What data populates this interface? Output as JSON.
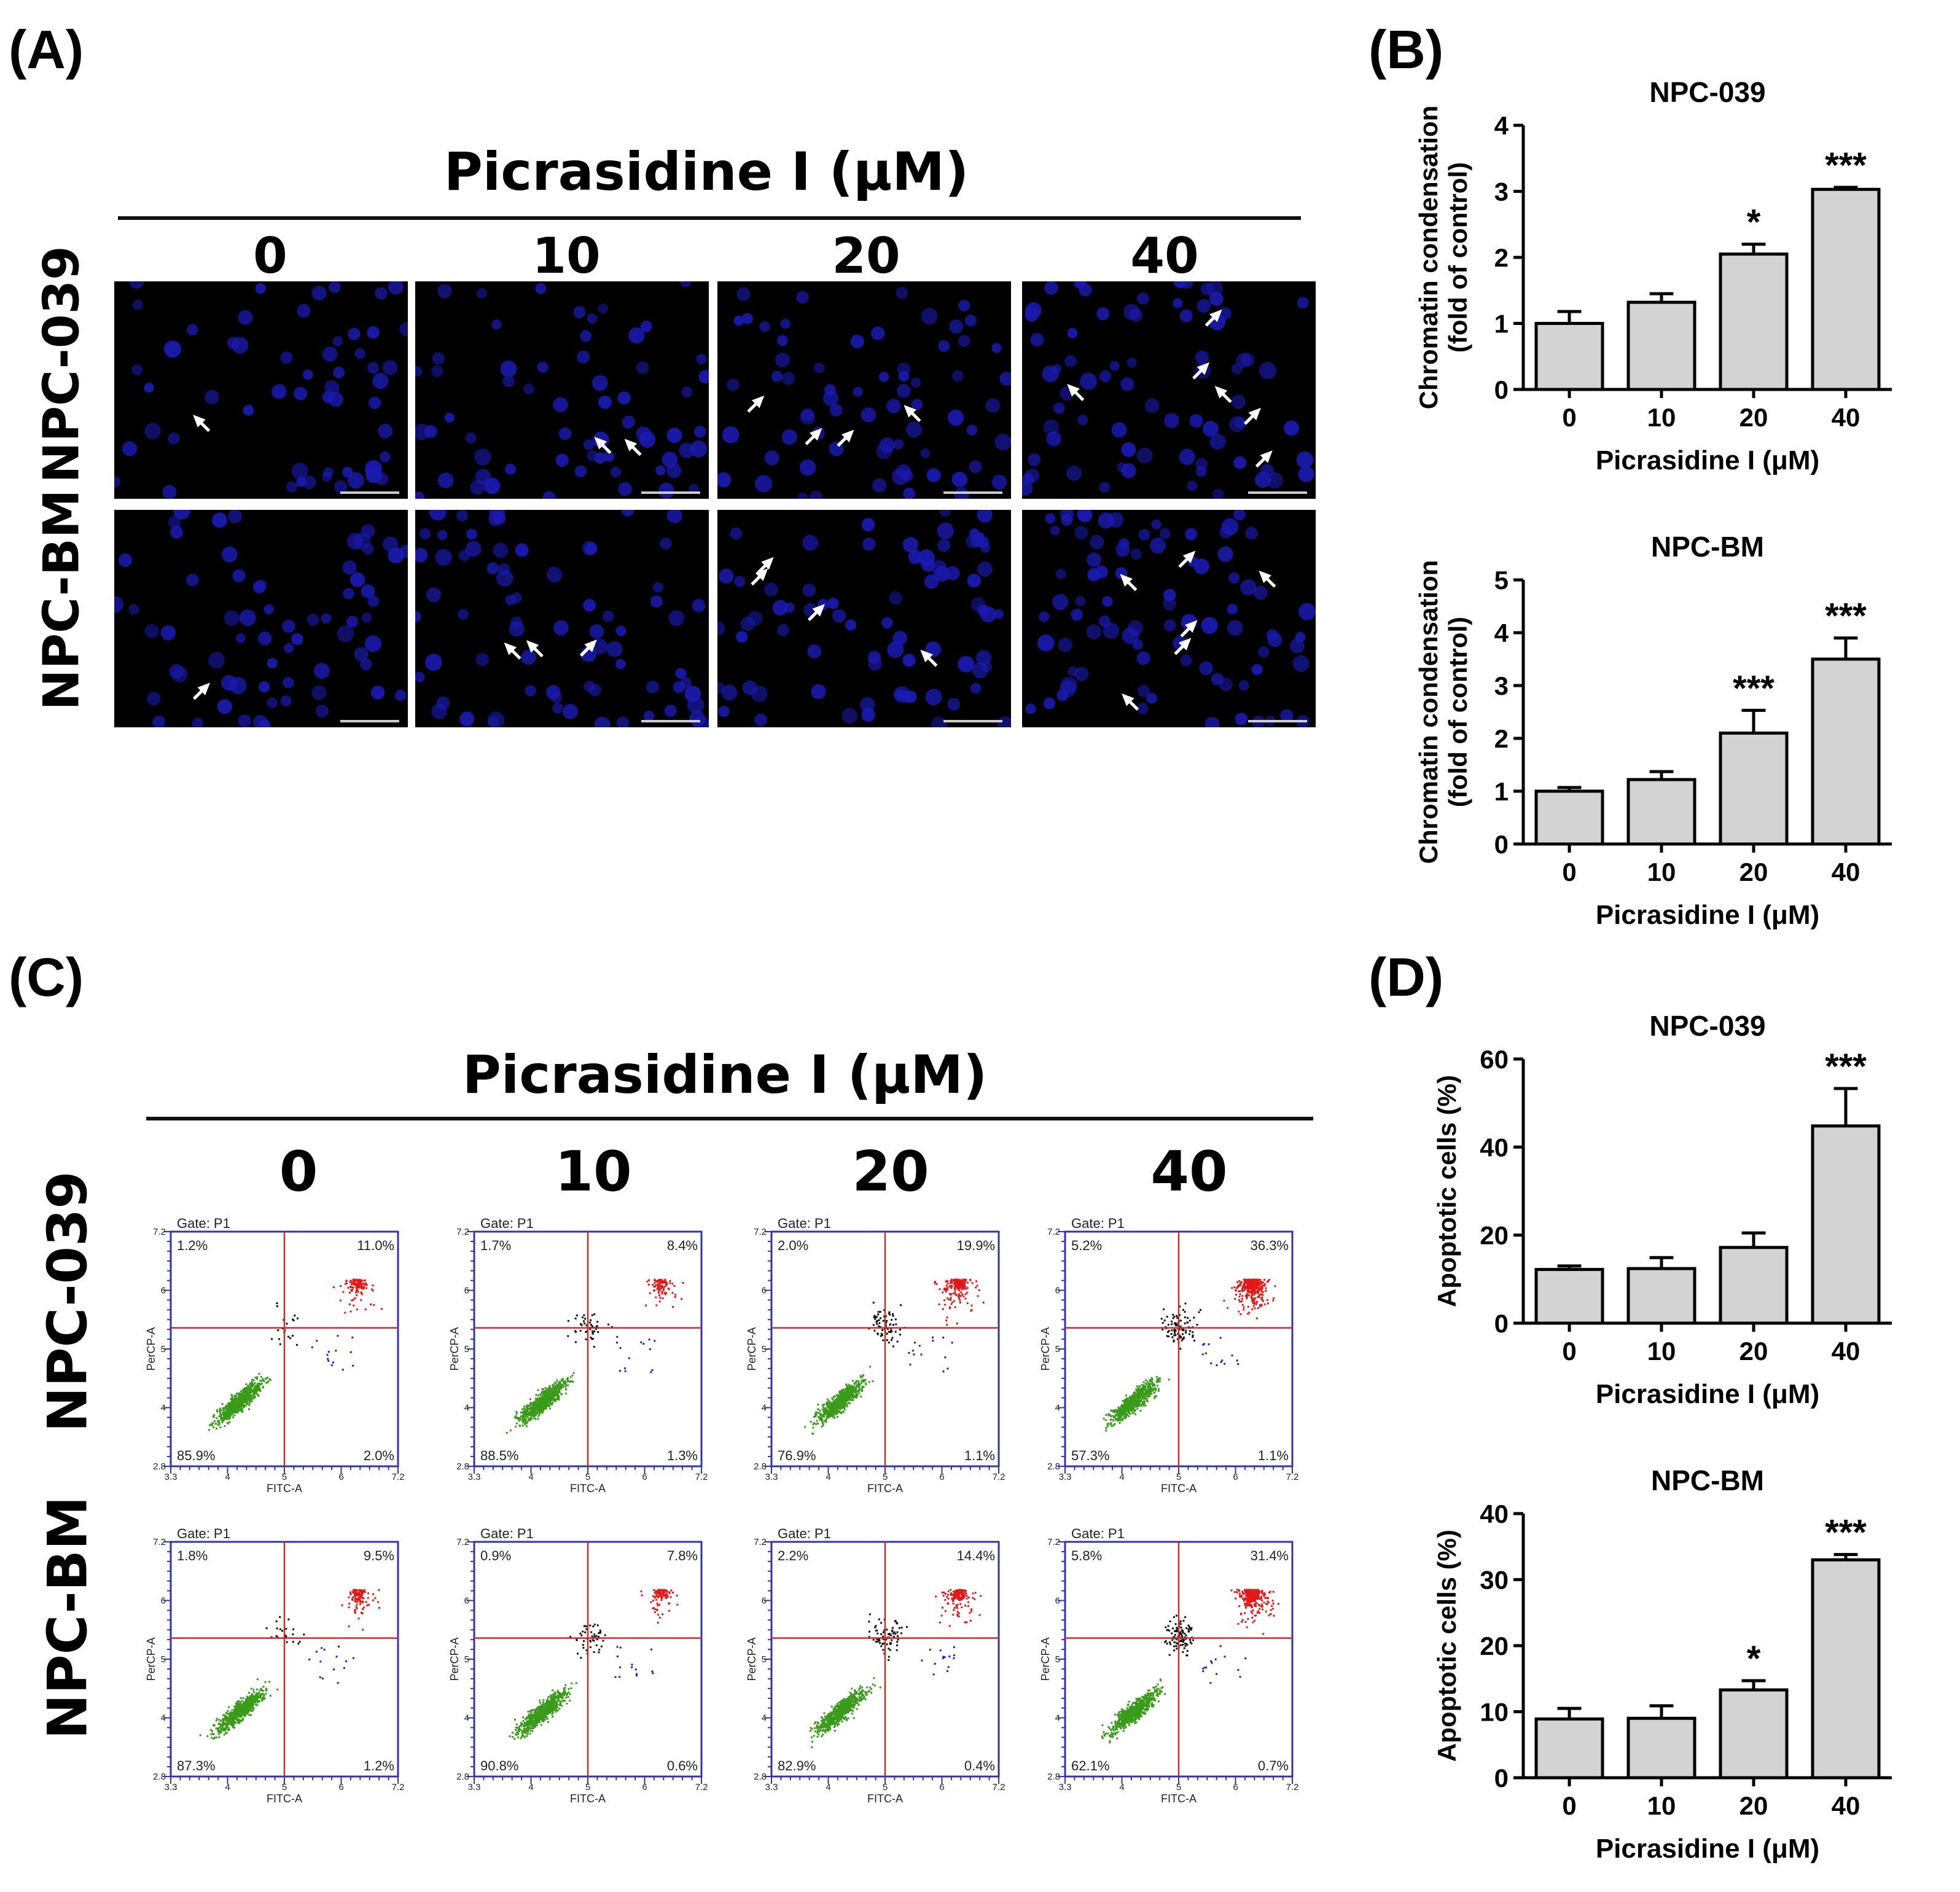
{
  "panels": {
    "a": {
      "label": "(A)",
      "title": "Picrasidine I (μM)",
      "doses": [
        "0",
        "10",
        "20",
        "40"
      ],
      "rows": [
        "NPC-039",
        "NPC-BM"
      ],
      "colors": {
        "background": "#000000",
        "nuclei": "#1a1ab0",
        "arrow": "#ffffff"
      }
    },
    "b": {
      "label": "(B)"
    },
    "c": {
      "label": "(C)",
      "title": "Picrasidine I (μM)",
      "doses": [
        "0",
        "10",
        "20",
        "40"
      ],
      "rows": [
        "NPC-039",
        "NPC-BM"
      ],
      "gate": "Gate: P1",
      "x_axis": "FITC-A",
      "y_axis": "PerCP-A",
      "tick_labels": [
        "3.3",
        "4",
        "5",
        "6",
        "7.2"
      ],
      "y_tick_labels": [
        "2.8",
        "4",
        "5",
        "6",
        "7.2"
      ],
      "colors": {
        "live": "#3a9a1a",
        "late": "#e01818",
        "early": "#2020c0",
        "necrotic": "#111111",
        "quad_line": "#cc2a2a",
        "frame": "#3333aa"
      },
      "quadrants": [
        [
          {
            "ul": "1.2%",
            "ur": "11.0%",
            "ll": "85.9%",
            "lr": "2.0%"
          },
          {
            "ul": "1.7%",
            "ur": "8.4%",
            "ll": "88.5%",
            "lr": "1.3%"
          },
          {
            "ul": "2.0%",
            "ur": "19.9%",
            "ll": "76.9%",
            "lr": "1.1%"
          },
          {
            "ul": "5.2%",
            "ur": "36.3%",
            "ll": "57.3%",
            "lr": "1.1%"
          }
        ],
        [
          {
            "ul": "1.8%",
            "ur": "9.5%",
            "ll": "87.3%",
            "lr": "1.2%"
          },
          {
            "ul": "0.9%",
            "ur": "7.8%",
            "ll": "90.8%",
            "lr": "0.6%"
          },
          {
            "ul": "2.2%",
            "ur": "14.4%",
            "ll": "82.9%",
            "lr": "0.4%"
          },
          {
            "ul": "5.8%",
            "ur": "31.4%",
            "ll": "62.1%",
            "lr": "0.7%"
          }
        ]
      ]
    },
    "d": {
      "label": "(D)"
    }
  },
  "chart_data": [
    {
      "id": "b1",
      "type": "bar",
      "title": "NPC-039",
      "categories": [
        "0",
        "10",
        "20",
        "40"
      ],
      "values": [
        1.0,
        1.32,
        2.05,
        3.03
      ],
      "errors": [
        0.18,
        0.13,
        0.15,
        0.03
      ],
      "significance": [
        "",
        "",
        "*",
        "***"
      ],
      "xlabel": "Picrasidine I (μM)",
      "ylabel": [
        "Chromatin condensation",
        "(fold of control)"
      ],
      "ylim": [
        0,
        4
      ],
      "yticks": [
        "0",
        "1",
        "2",
        "3",
        "4"
      ],
      "bar_color": "#d3d3d3"
    },
    {
      "id": "b2",
      "type": "bar",
      "title": "NPC-BM",
      "categories": [
        "0",
        "10",
        "20",
        "40"
      ],
      "values": [
        1.0,
        1.22,
        2.1,
        3.5
      ],
      "errors": [
        0.07,
        0.15,
        0.43,
        0.4
      ],
      "significance": [
        "",
        "",
        "***",
        "***"
      ],
      "xlabel": "Picrasidine I (μM)",
      "ylabel": [
        "Chromatin condensation",
        "(fold of control)"
      ],
      "ylim": [
        0,
        5
      ],
      "yticks": [
        "0",
        "1",
        "2",
        "3",
        "4",
        "5"
      ],
      "bar_color": "#d3d3d3"
    },
    {
      "id": "d1",
      "type": "bar",
      "title": "NPC-039",
      "categories": [
        "0",
        "10",
        "20",
        "40"
      ],
      "values": [
        12.2,
        12.4,
        17.2,
        44.8
      ],
      "errors": [
        0.8,
        2.5,
        3.3,
        8.5
      ],
      "significance": [
        "",
        "",
        "",
        "***"
      ],
      "xlabel": "Picrasidine I (μM)",
      "ylabel": [
        "Apoptotic cells (%)"
      ],
      "ylim": [
        0,
        60
      ],
      "yticks": [
        "0",
        "20",
        "40",
        "60"
      ],
      "bar_color": "#d3d3d3"
    },
    {
      "id": "d2",
      "type": "bar",
      "title": "NPC-BM",
      "categories": [
        "0",
        "10",
        "20",
        "40"
      ],
      "values": [
        8.9,
        9.0,
        13.3,
        33.0
      ],
      "errors": [
        1.6,
        1.9,
        1.4,
        0.8
      ],
      "significance": [
        "",
        "",
        "*",
        "***"
      ],
      "xlabel": "Picrasidine I (μM)",
      "ylabel": [
        "Apoptotic cells (%)"
      ],
      "ylim": [
        0,
        40
      ],
      "yticks": [
        "0",
        "10",
        "20",
        "30",
        "40"
      ],
      "bar_color": "#d3d3d3"
    }
  ]
}
